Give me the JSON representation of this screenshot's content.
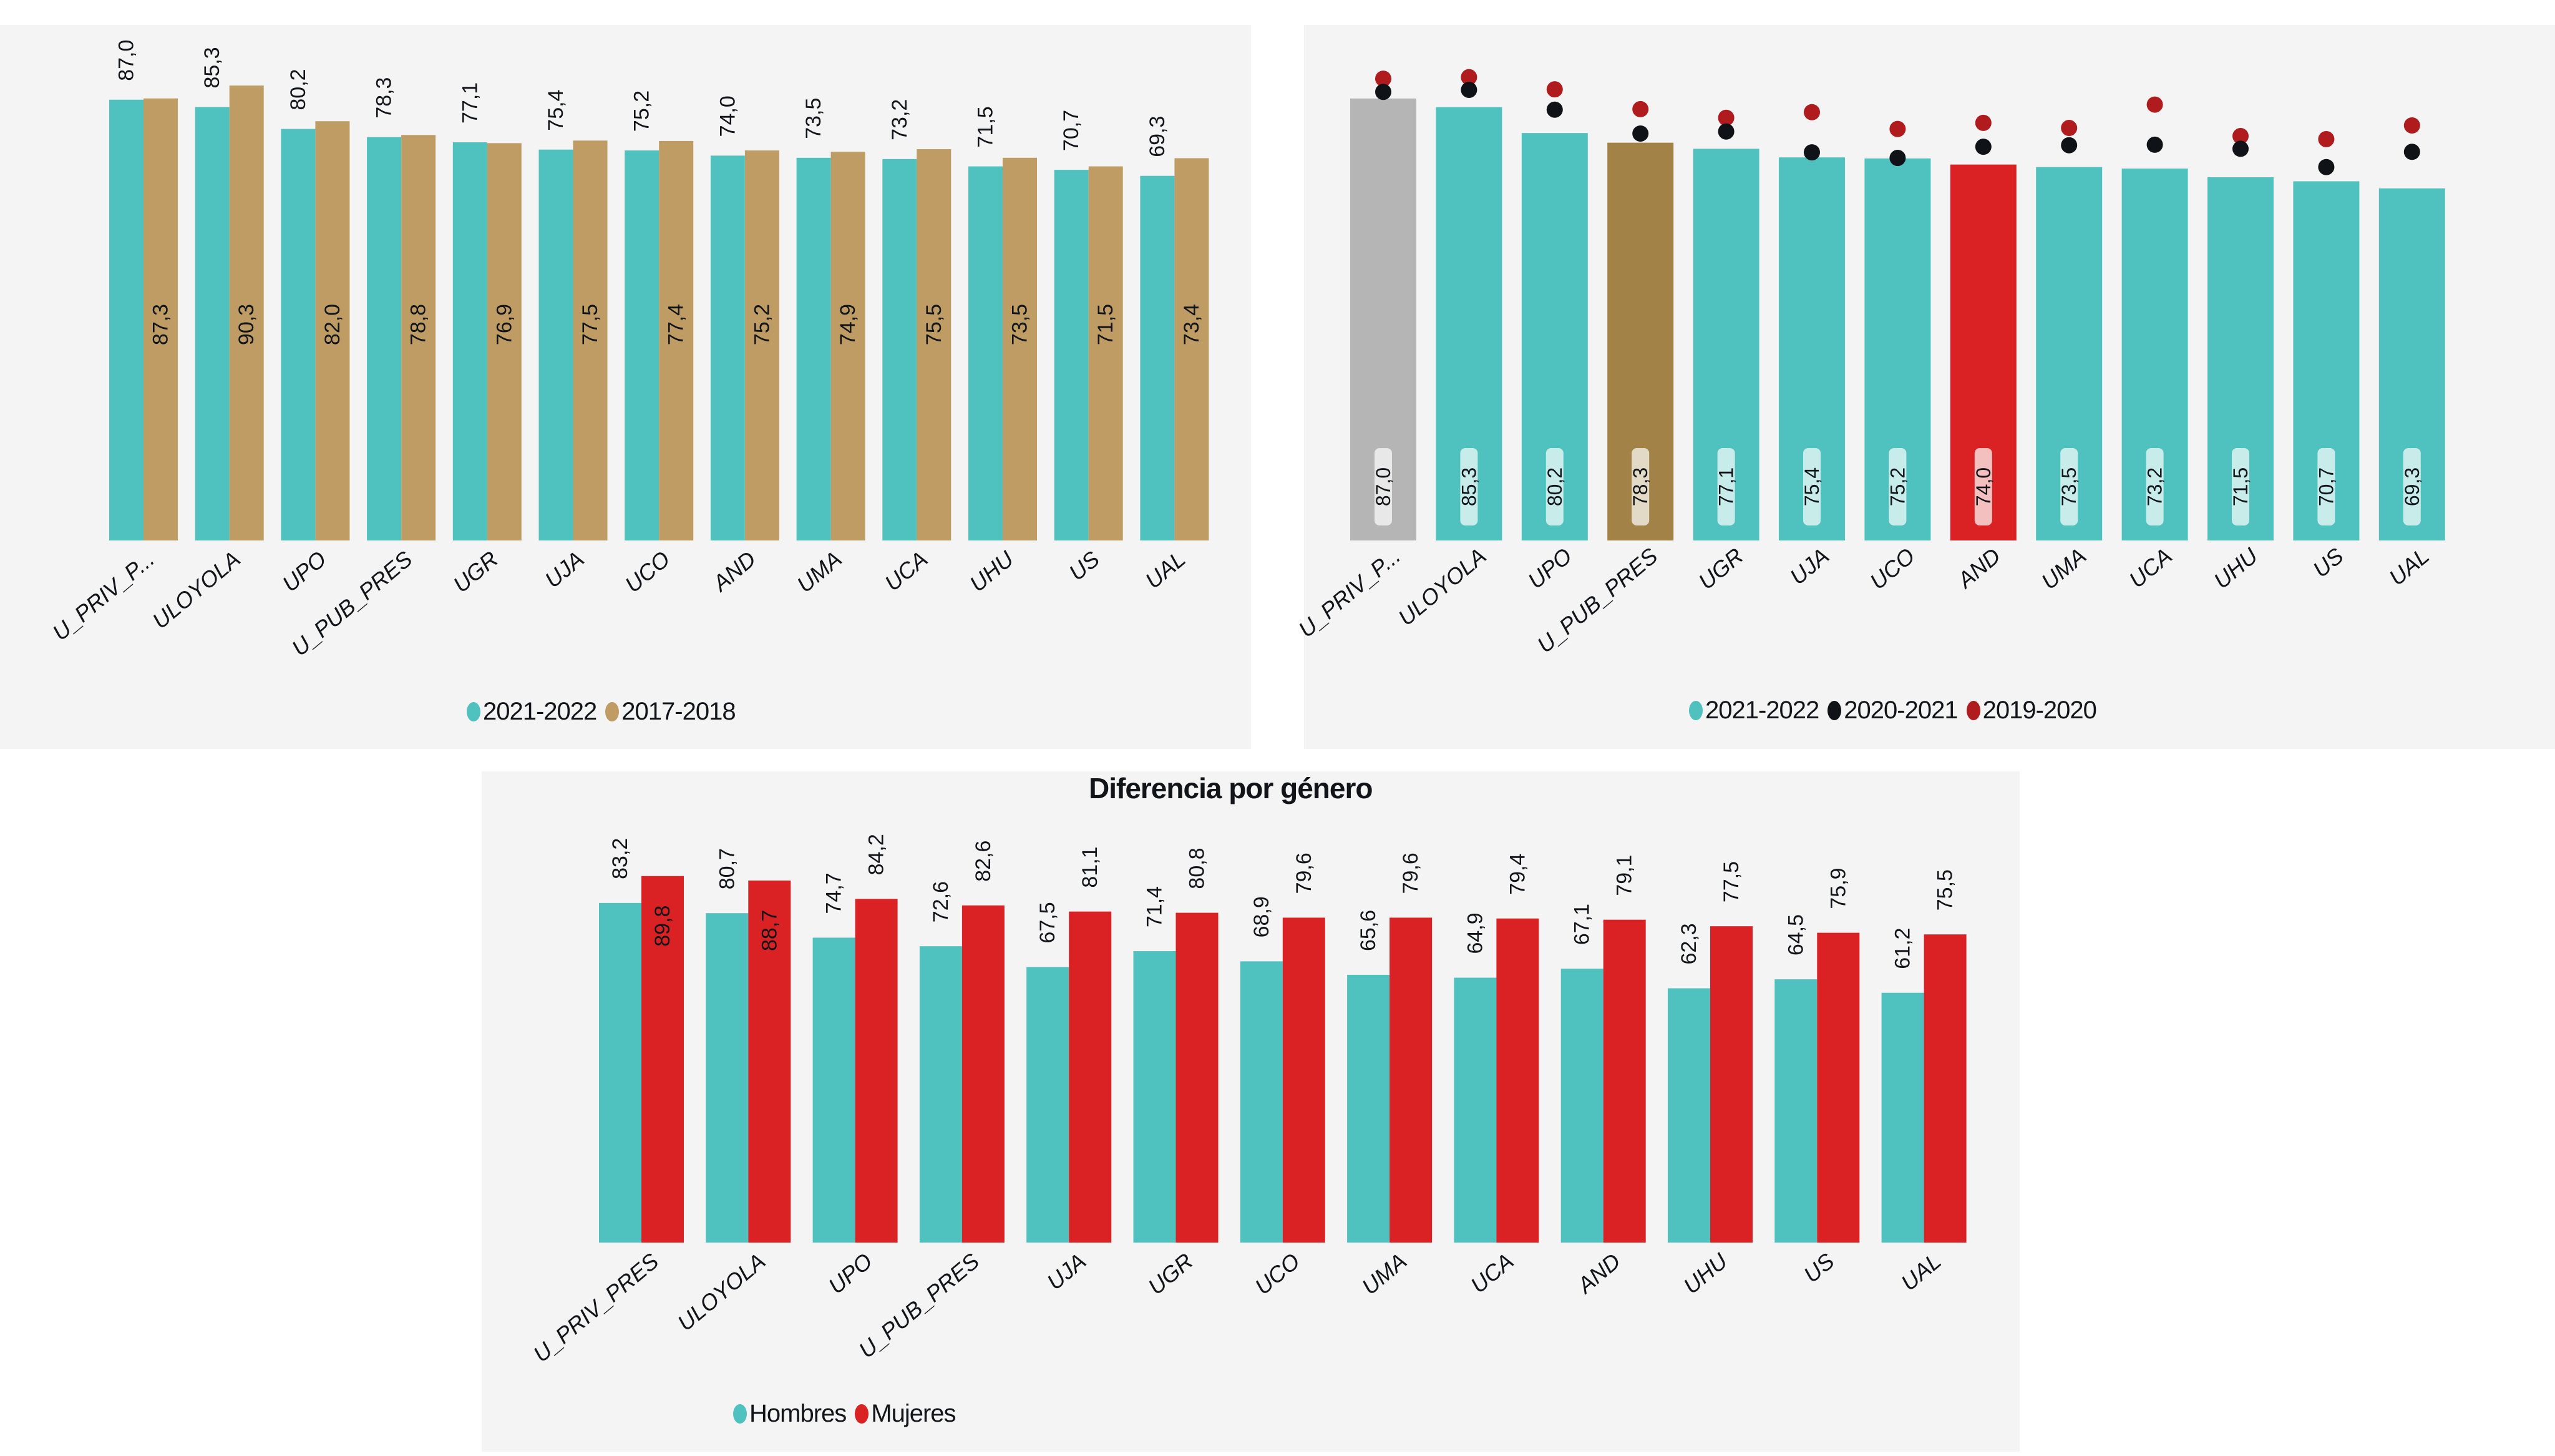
{
  "colors": {
    "teal": "#4fc1be",
    "gold": "#be9c64",
    "gray": "#b5b5b5",
    "brown": "#a28246",
    "red": "#da2224",
    "black_dot": "#0f1217",
    "red_dot": "#b01b1d",
    "panel_bg": "#f4f4f4"
  },
  "chart_data": [
    {
      "id": "chart-comparison",
      "type": "bar",
      "title": "",
      "categories": [
        "U_PRIV_P...",
        "ULOYOLA",
        "UPO",
        "U_PUB_PRES",
        "UGR",
        "UJA",
        "UCO",
        "AND",
        "UMA",
        "UCA",
        "UHU",
        "US",
        "UAL"
      ],
      "series": [
        {
          "name": "2021-2022",
          "color": "#4fc1be",
          "values": [
            87.0,
            85.3,
            80.2,
            78.3,
            77.1,
            75.4,
            75.2,
            74.0,
            73.5,
            73.2,
            71.5,
            70.7,
            69.3
          ],
          "labels": [
            "87,0",
            "85,3",
            "80,2",
            "78,3",
            "77,1",
            "75,4",
            "75,2",
            "74,0",
            "73,5",
            "73,2",
            "71,5",
            "70,7",
            "69,3"
          ]
        },
        {
          "name": "2017-2018",
          "color": "#be9c64",
          "values": [
            87.3,
            90.3,
            82.0,
            78.8,
            76.9,
            77.5,
            77.4,
            75.2,
            74.9,
            75.5,
            73.5,
            71.5,
            73.4
          ],
          "labels": [
            "87,3",
            "90,3",
            "82,0",
            "78,8",
            "76,9",
            "77,5",
            "77,4",
            "75,2",
            "74,9",
            "75,5",
            "73,5",
            "71,5",
            "73,4"
          ]
        }
      ],
      "legend": [
        "2021-2022",
        "2017-2018"
      ],
      "legend_position": "bottom",
      "grid": false,
      "ylim": [
        -15.5,
        95
      ]
    },
    {
      "id": "chart-evolution",
      "type": "bar",
      "title": "",
      "categories": [
        "U_PRIV_P...",
        "ULOYOLA",
        "UPO",
        "U_PUB_PRES",
        "UGR",
        "UJA",
        "UCO",
        "AND",
        "UMA",
        "UCA",
        "UHU",
        "US",
        "UAL"
      ],
      "bar_colors": [
        "#b5b5b5",
        "#4fc1be",
        "#4fc1be",
        "#a28246",
        "#4fc1be",
        "#4fc1be",
        "#4fc1be",
        "#da2224",
        "#4fc1be",
        "#4fc1be",
        "#4fc1be",
        "#4fc1be",
        "#4fc1be"
      ],
      "label_bg_colors": [
        "#e8e8e8",
        "#c8ecea",
        "#c8ecea",
        "#e2dac7",
        "#c8ecea",
        "#c8ecea",
        "#c8ecea",
        "#f4bfbf",
        "#c8ecea",
        "#c8ecea",
        "#c8ecea",
        "#c8ecea",
        "#c8ecea"
      ],
      "series": [
        {
          "name": "2021-2022",
          "kind": "bar",
          "color": "#4fc1be",
          "values": [
            87.0,
            85.3,
            80.2,
            78.3,
            77.1,
            75.4,
            75.2,
            74.0,
            73.5,
            73.2,
            71.5,
            70.7,
            69.3
          ],
          "labels": [
            "87,0",
            "85,3",
            "80,2",
            "78,3",
            "77,1",
            "75,4",
            "75,2",
            "74,0",
            "73,5",
            "73,2",
            "71,5",
            "70,7",
            "69,3"
          ]
        },
        {
          "name": "2020-2021",
          "kind": "dot",
          "color": "#0f1217",
          "values": [
            88.3,
            88.7,
            84.8,
            80.1,
            80.5,
            76.4,
            75.3,
            77.5,
            77.8,
            77.9,
            77.1,
            73.5,
            76.5
          ]
        },
        {
          "name": "2019-2020",
          "kind": "dot",
          "color": "#b01b1d",
          "values": [
            90.9,
            91.2,
            88.8,
            84.9,
            83.2,
            84.3,
            81.0,
            82.2,
            81.2,
            85.8,
            79.6,
            79.0,
            81.7
          ]
        }
      ],
      "legend": [
        "2021-2022",
        "2020-2021",
        "2019-2020"
      ],
      "legend_position": "bottom",
      "grid": false,
      "ylim": [
        0,
        100
      ]
    },
    {
      "id": "chart-gender",
      "type": "bar",
      "title": "Diferencia por género",
      "categories": [
        "U_PRIV_PRES",
        "ULOYOLA",
        "UPO",
        "U_PUB_PRES",
        "UJA",
        "UGR",
        "UCO",
        "UMA",
        "UCA",
        "AND",
        "UHU",
        "US",
        "UAL"
      ],
      "series": [
        {
          "name": "Hombres",
          "color": "#4fc1be",
          "values": [
            83.2,
            80.7,
            74.7,
            72.6,
            67.5,
            71.4,
            68.9,
            65.6,
            64.9,
            67.1,
            62.3,
            64.5,
            61.2
          ],
          "labels": [
            "83,2",
            "80,7",
            "74,7",
            "72,6",
            "67,5",
            "71,4",
            "68,9",
            "65,6",
            "64,9",
            "67,1",
            "62,3",
            "64,5",
            "61,2"
          ]
        },
        {
          "name": "Mujeres",
          "color": "#da2224",
          "values": [
            89.8,
            88.7,
            84.2,
            82.6,
            81.1,
            80.8,
            79.6,
            79.6,
            79.4,
            79.1,
            77.5,
            75.9,
            75.5
          ],
          "labels": [
            "89,8",
            "88,7",
            "84,2",
            "82,6",
            "81,1",
            "80,8",
            "79,6",
            "79,6",
            "79,4",
            "79,1",
            "77,5",
            "75,9",
            "75,5"
          ]
        }
      ],
      "legend": [
        "Hombres",
        "Mujeres"
      ],
      "legend_position": "bottom",
      "grid": false,
      "ylim": [
        0,
        100
      ]
    }
  ]
}
